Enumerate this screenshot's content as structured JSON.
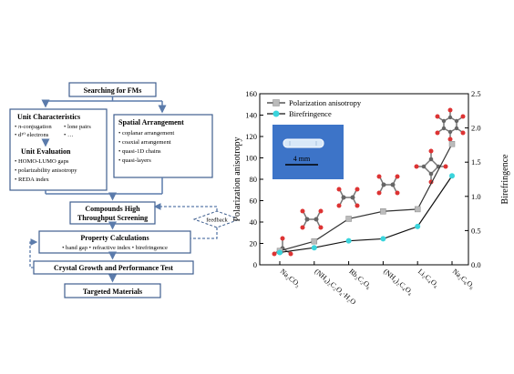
{
  "flowchart": {
    "search": "Searching for FMs",
    "unit_characteristics": {
      "title": "Unit Characteristics",
      "items": [
        "• π-conjugation",
        "• lone pairs",
        "• d¹⁰ electrons",
        "• …"
      ]
    },
    "unit_evaluation": {
      "title": "Unit Evaluation",
      "items": [
        "• HOMO-LUMO gaps",
        "• polarizability anisotropy",
        "• REDA index"
      ]
    },
    "spatial_arrangement": {
      "title": "Spatial Arrangement",
      "items": [
        "• coplanar arrangement",
        "• coaxial arrangement",
        "• quasi-1D chains",
        "• quasi-layers"
      ]
    },
    "screening": [
      "Compounds High",
      "Throughput Screening"
    ],
    "feedback": "feedback",
    "property_calc": {
      "title": "Property Calculations",
      "items": "• band gap • refractive index • birefringence"
    },
    "crystal": "Crystal Growth and Performance Test",
    "targeted": "Targeted Materials",
    "colors": {
      "border": "#3f5f8f",
      "arrow": "#5b7bab"
    }
  },
  "chart_data": {
    "type": "line",
    "categories": [
      "Na₂CO₃",
      "(NH₄)₂C₂O₄·H₂O",
      "Rb₂C₂O₆",
      "(NH₄)₂C₄O₄",
      "Li₂C₄O₄",
      "Na₂C₆O₆"
    ],
    "series": [
      {
        "name": "Polarization anisotropy",
        "axis": "left",
        "values": [
          13,
          22,
          43,
          50,
          52,
          113
        ],
        "color": "#333333",
        "marker": "#bbbbbb"
      },
      {
        "name": "Birefringence",
        "axis": "right",
        "values": [
          0.18,
          0.25,
          0.35,
          0.38,
          0.56,
          1.3
        ],
        "color": "#111111",
        "marker": "#3ad4dc"
      }
    ],
    "ylabel": "Polarization anisotropy",
    "y2label": "Birefringence",
    "ylim": [
      0,
      160
    ],
    "yticks": [
      "0",
      "20",
      "40",
      "60",
      "80",
      "100",
      "120",
      "140",
      "160"
    ],
    "y2lim": [
      0,
      2.5
    ],
    "y2ticks": [
      "0.0",
      "0.5",
      "1.0",
      "1.5",
      "2.0",
      "2.5"
    ],
    "inset_label": "4 mm",
    "legend_position": "top-center",
    "inset_color": "#3d74c8"
  }
}
